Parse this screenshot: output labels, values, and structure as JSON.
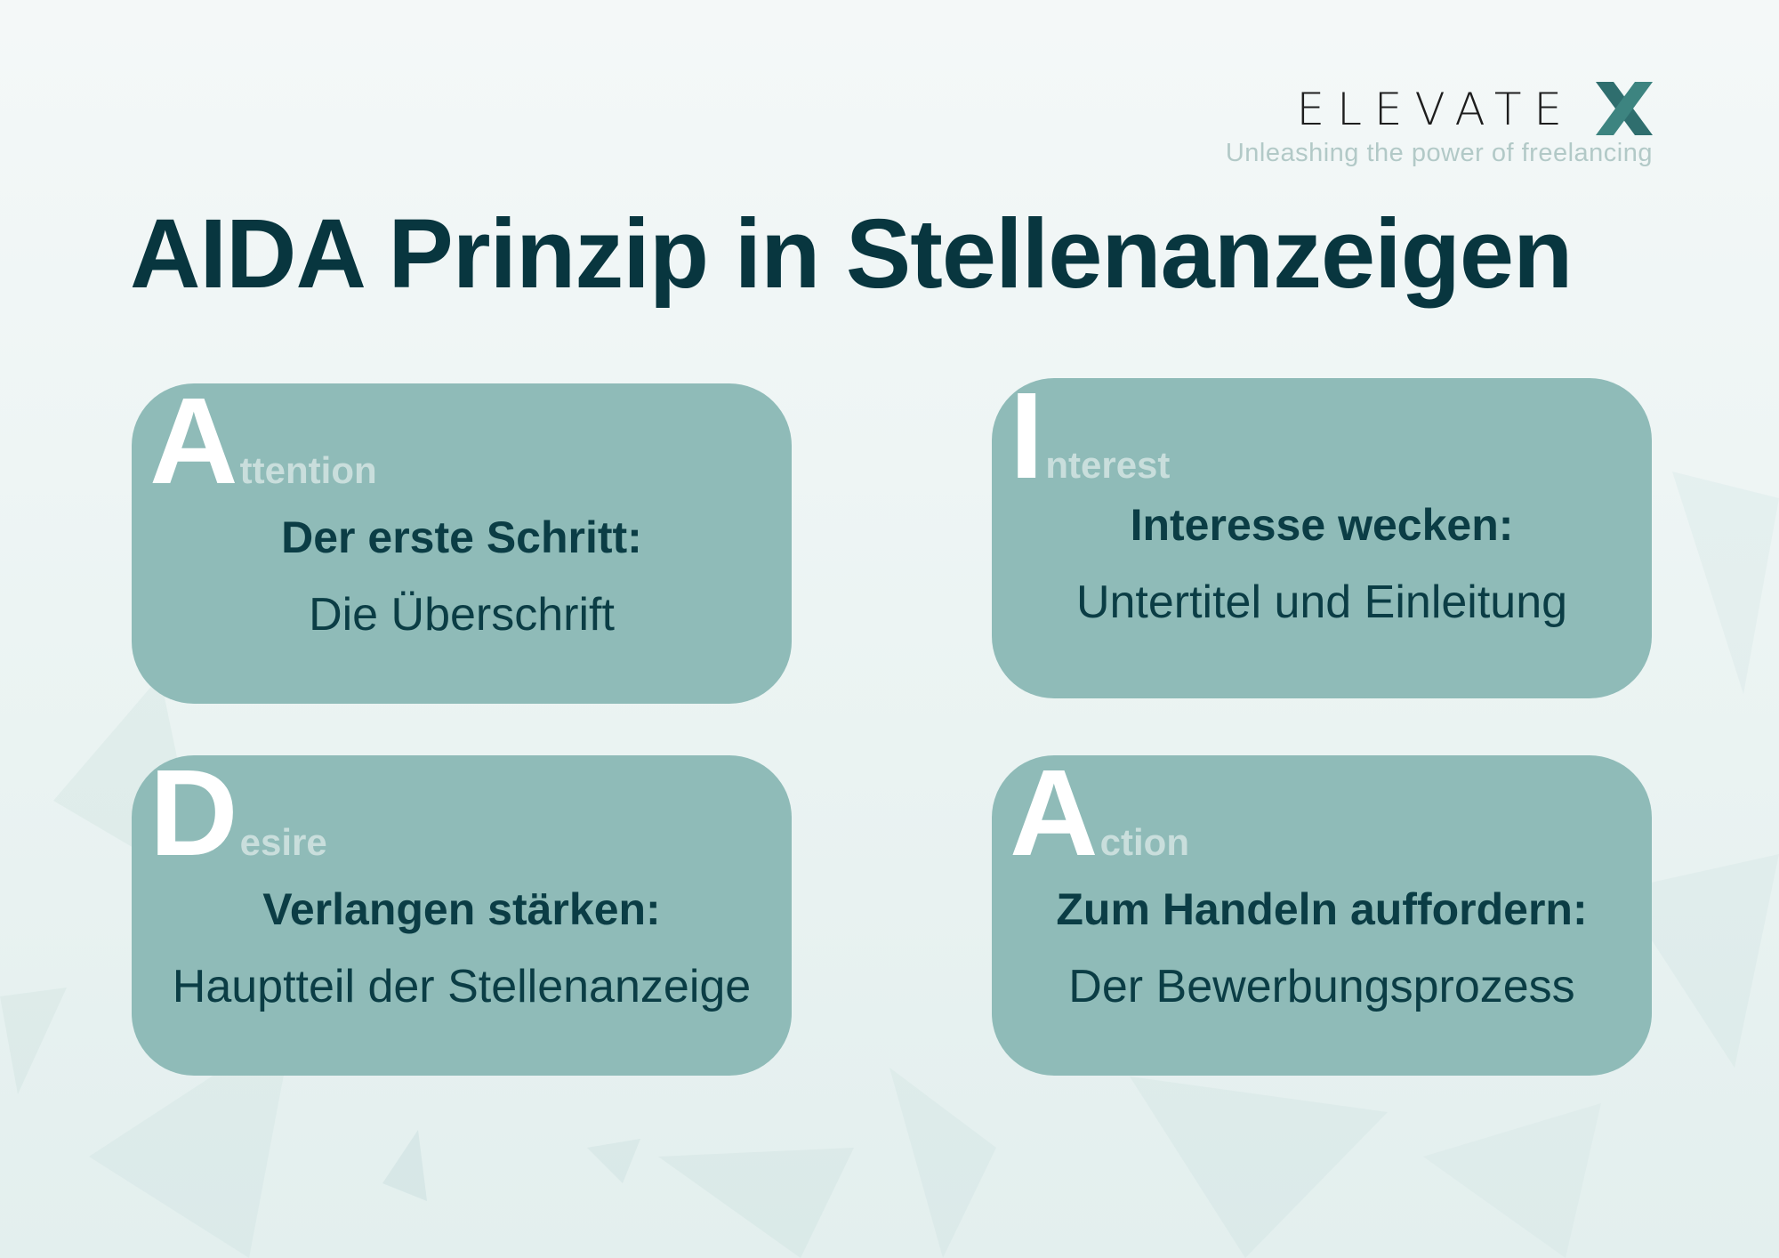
{
  "logo": {
    "wordmark": "ELEVATE",
    "mark": "X",
    "tagline": "Unleashing the power of freelancing"
  },
  "title": "AIDA Prinzip in Stellenanzeigen",
  "colors": {
    "card": "#8fbbb8",
    "text": "#0b3d45",
    "letter": "#ffffff",
    "word": "#c9dedc"
  },
  "cards": [
    {
      "letter": "A",
      "rest": "ttention",
      "heading": "Der erste Schritt:",
      "text": "Die Überschrift"
    },
    {
      "letter": "I",
      "rest": "nterest",
      "heading": "Interesse wecken:",
      "text": "Untertitel und Einleitung"
    },
    {
      "letter": "D",
      "rest": "esire",
      "heading": "Verlangen stärken:",
      "text": "Hauptteil der Stellenanzeige"
    },
    {
      "letter": "A",
      "rest": "ction",
      "heading": "Zum Handeln auffordern:",
      "text": "Der Bewerbungsprozess"
    }
  ]
}
